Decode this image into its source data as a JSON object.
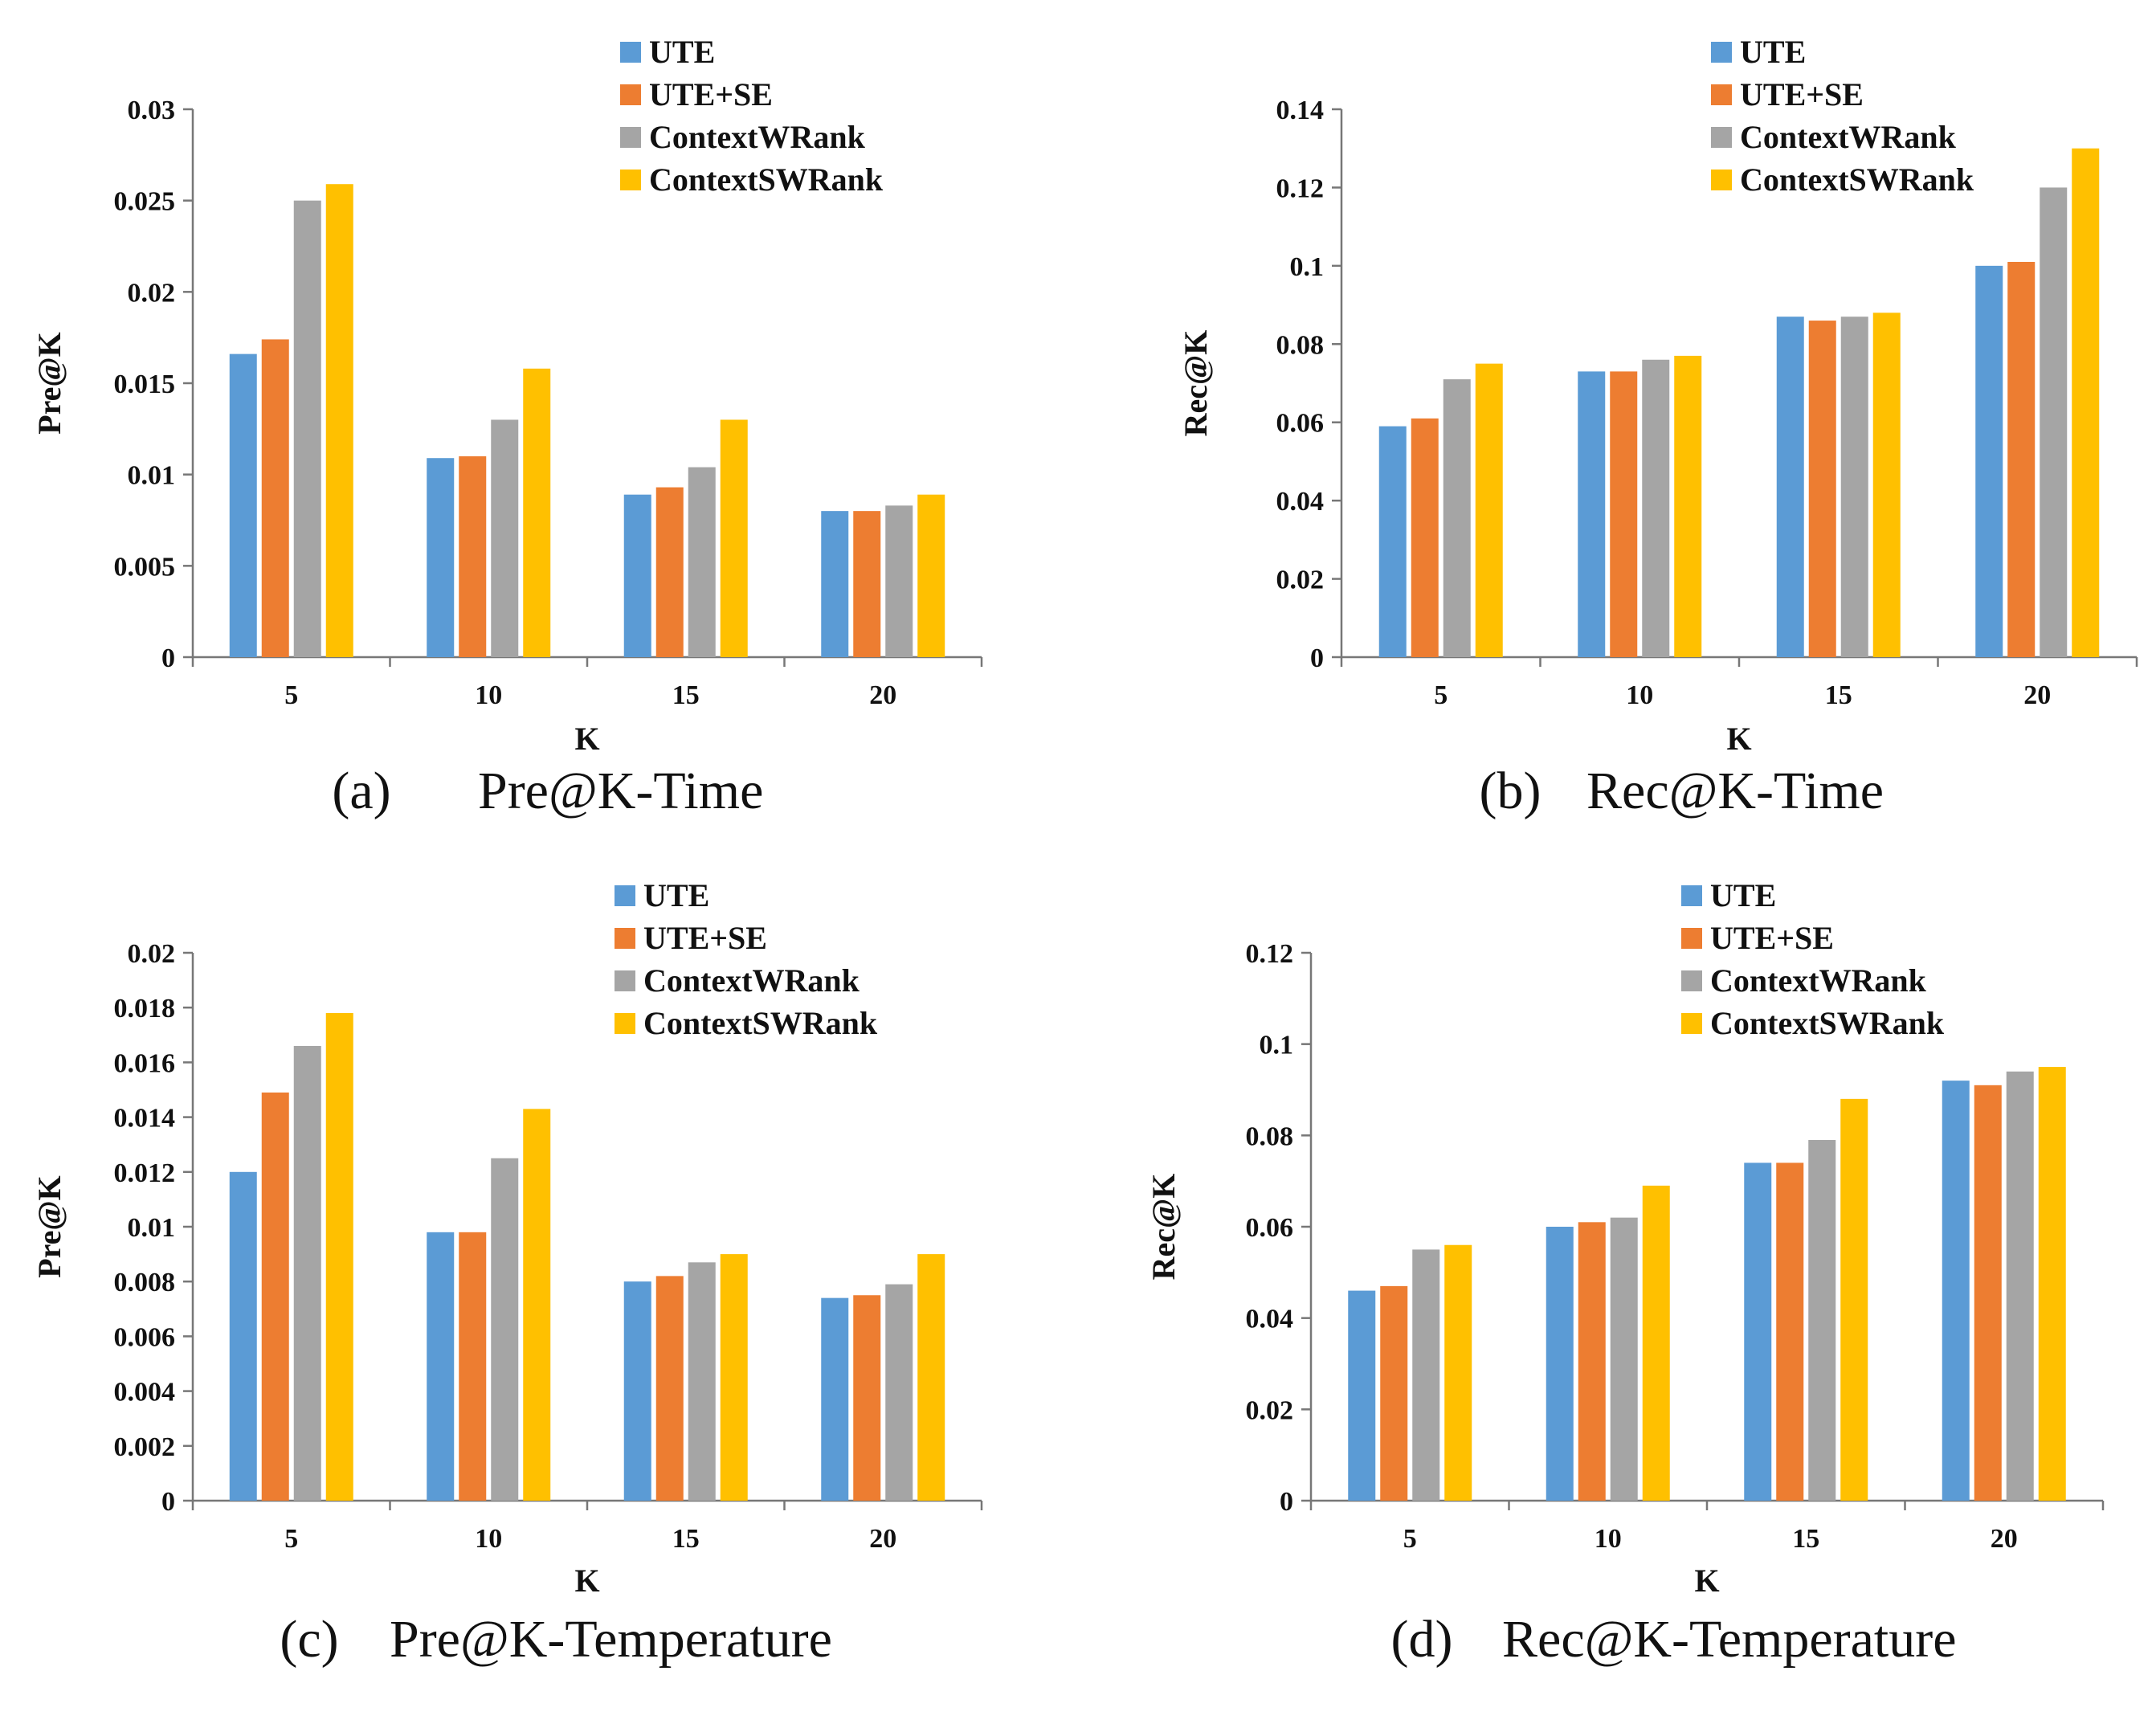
{
  "colors": {
    "UTE": "#5B9BD5",
    "UTE+SE": "#ED7D31",
    "ContextWRank": "#A5A5A5",
    "ContextSWRank": "#FFC000"
  },
  "chart_data": [
    {
      "type": "bar",
      "caption_tag": "(a)",
      "caption_text": "Pre@K-Time",
      "xlabel": "K",
      "ylabel": "Pre@K",
      "categories": [
        "5",
        "10",
        "15",
        "20"
      ],
      "ylim": [
        0,
        0.03
      ],
      "yticks": [
        "0",
        "0.005",
        "0.01",
        "0.015",
        "0.02",
        "0.025",
        "0.03"
      ],
      "legend_position": "top-right",
      "series": [
        {
          "name": "UTE",
          "values": [
            0.0166,
            0.0109,
            0.0089,
            0.008
          ]
        },
        {
          "name": "UTE+SE",
          "values": [
            0.0174,
            0.011,
            0.0093,
            0.008
          ]
        },
        {
          "name": "ContextWRank",
          "values": [
            0.025,
            0.013,
            0.0104,
            0.0083
          ]
        },
        {
          "name": "ContextSWRank",
          "values": [
            0.0259,
            0.0158,
            0.013,
            0.0089
          ]
        }
      ]
    },
    {
      "type": "bar",
      "caption_tag": "(b)",
      "caption_text": "Rec@K-Time",
      "xlabel": "K",
      "ylabel": "Rec@K",
      "categories": [
        "5",
        "10",
        "15",
        "20"
      ],
      "ylim": [
        0,
        0.14
      ],
      "yticks": [
        "0",
        "0.02",
        "0.04",
        "0.06",
        "0.08",
        "0.1",
        "0.12",
        "0.14"
      ],
      "legend_position": "top-right",
      "series": [
        {
          "name": "UTE",
          "values": [
            0.059,
            0.073,
            0.087,
            0.1
          ]
        },
        {
          "name": "UTE+SE",
          "values": [
            0.061,
            0.073,
            0.086,
            0.101
          ]
        },
        {
          "name": "ContextWRank",
          "values": [
            0.071,
            0.076,
            0.087,
            0.12
          ]
        },
        {
          "name": "ContextSWRank",
          "values": [
            0.075,
            0.077,
            0.088,
            0.13
          ]
        }
      ]
    },
    {
      "type": "bar",
      "caption_tag": "(c)",
      "caption_text": "Pre@K-Temperature",
      "xlabel": "K",
      "ylabel": "Pre@K",
      "categories": [
        "5",
        "10",
        "15",
        "20"
      ],
      "ylim": [
        0,
        0.02
      ],
      "yticks": [
        "0",
        "0.002",
        "0.004",
        "0.006",
        "0.008",
        "0.01",
        "0.012",
        "0.014",
        "0.016",
        "0.018",
        "0.02"
      ],
      "legend_position": "top-right",
      "series": [
        {
          "name": "UTE",
          "values": [
            0.012,
            0.0098,
            0.008,
            0.0074
          ]
        },
        {
          "name": "UTE+SE",
          "values": [
            0.0149,
            0.0098,
            0.0082,
            0.0075
          ]
        },
        {
          "name": "ContextWRank",
          "values": [
            0.0166,
            0.0125,
            0.0087,
            0.0079
          ]
        },
        {
          "name": "ContextSWRank",
          "values": [
            0.0178,
            0.0143,
            0.009,
            0.009
          ]
        }
      ]
    },
    {
      "type": "bar",
      "caption_tag": "(d)",
      "caption_text": "Rec@K-Temperature",
      "xlabel": "K",
      "ylabel": "Rec@K",
      "categories": [
        "5",
        "10",
        "15",
        "20"
      ],
      "ylim": [
        0,
        0.12
      ],
      "yticks": [
        "0",
        "0.02",
        "0.04",
        "0.06",
        "0.08",
        "0.1",
        "0.12"
      ],
      "legend_position": "top-right",
      "series": [
        {
          "name": "UTE",
          "values": [
            0.046,
            0.06,
            0.074,
            0.092
          ]
        },
        {
          "name": "UTE+SE",
          "values": [
            0.047,
            0.061,
            0.074,
            0.091
          ]
        },
        {
          "name": "ContextWRank",
          "values": [
            0.055,
            0.062,
            0.079,
            0.094
          ]
        },
        {
          "name": "ContextSWRank",
          "values": [
            0.056,
            0.069,
            0.088,
            0.095
          ]
        }
      ]
    }
  ]
}
